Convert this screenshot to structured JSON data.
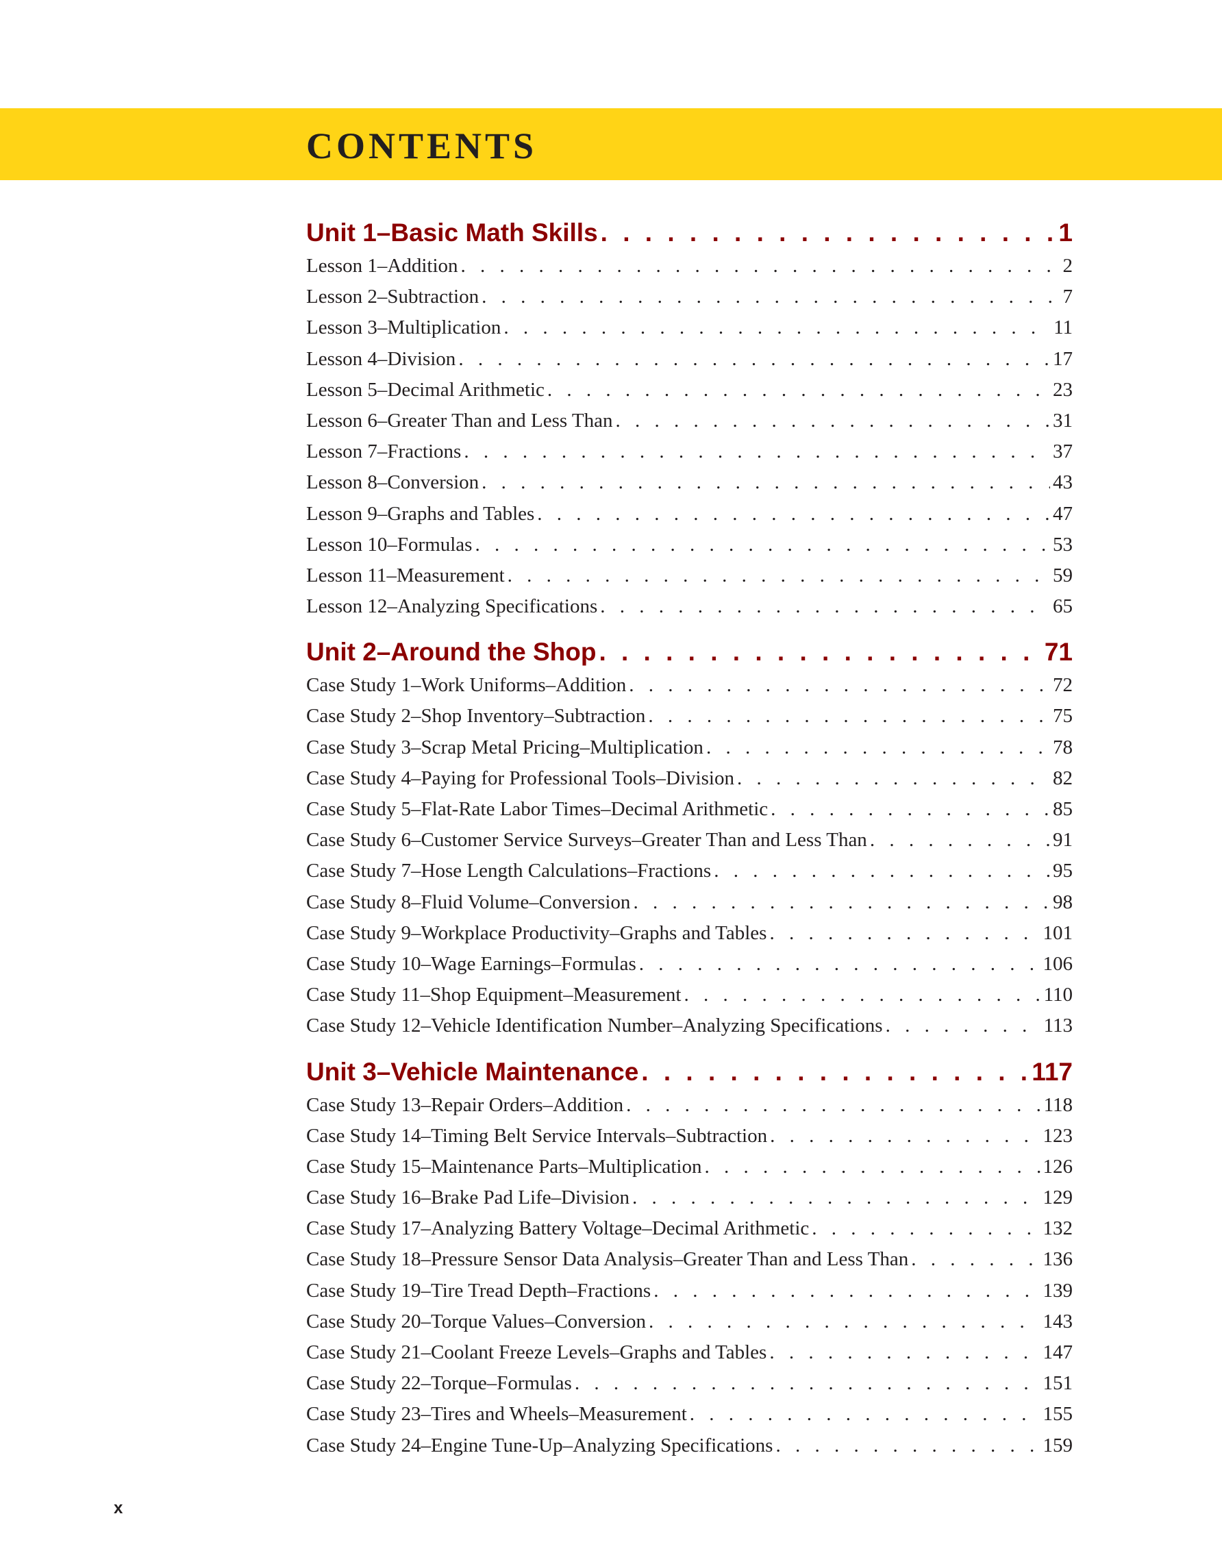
{
  "header": {
    "title": "CONTENTS",
    "banner_color": "#FFD416"
  },
  "colors": {
    "unit_heading": "#8B0000",
    "text": "#231f20"
  },
  "units": [
    {
      "title": "Unit 1–Basic Math Skills",
      "page": "1",
      "entries": [
        {
          "label": "Lesson 1–Addition",
          "page": "2"
        },
        {
          "label": "Lesson 2–Subtraction",
          "page": "7"
        },
        {
          "label": "Lesson 3–Multiplication",
          "page": "11"
        },
        {
          "label": "Lesson 4–Division",
          "page": "17"
        },
        {
          "label": "Lesson 5–Decimal Arithmetic",
          "page": "23"
        },
        {
          "label": "Lesson 6–Greater Than and Less Than",
          "page": "31"
        },
        {
          "label": "Lesson 7–Fractions",
          "page": "37"
        },
        {
          "label": "Lesson 8–Conversion",
          "page": "43"
        },
        {
          "label": "Lesson 9–Graphs and Tables",
          "page": "47"
        },
        {
          "label": "Lesson 10–Formulas",
          "page": "53"
        },
        {
          "label": "Lesson 11–Measurement",
          "page": "59"
        },
        {
          "label": "Lesson 12–Analyzing Specifications",
          "page": "65"
        }
      ]
    },
    {
      "title": "Unit 2–Around the Shop",
      "page": "71",
      "entries": [
        {
          "label": "Case Study 1–Work Uniforms–Addition",
          "page": "72"
        },
        {
          "label": "Case Study 2–Shop Inventory–Subtraction",
          "page": "75"
        },
        {
          "label": "Case Study 3–Scrap Metal Pricing–Multiplication",
          "page": "78"
        },
        {
          "label": "Case Study 4–Paying for Professional Tools–Division",
          "page": "82"
        },
        {
          "label": "Case Study 5–Flat-Rate Labor Times–Decimal Arithmetic",
          "page": "85"
        },
        {
          "label": "Case Study 6–Customer Service Surveys–Greater Than and Less Than",
          "page": "91"
        },
        {
          "label": "Case Study 7–Hose Length Calculations–Fractions",
          "page": "95"
        },
        {
          "label": "Case Study 8–Fluid Volume–Conversion",
          "page": "98"
        },
        {
          "label": "Case Study 9–Workplace Productivity–Graphs and Tables",
          "page": "101"
        },
        {
          "label": "Case Study 10–Wage Earnings–Formulas",
          "page": "106"
        },
        {
          "label": "Case Study 11–Shop Equipment–Measurement",
          "page": "110"
        },
        {
          "label": "Case Study 12–Vehicle Identification Number–Analyzing Specifications",
          "page": "113"
        }
      ]
    },
    {
      "title": "Unit 3–Vehicle Maintenance",
      "page": "117",
      "entries": [
        {
          "label": "Case Study 13–Repair Orders–Addition",
          "page": "118"
        },
        {
          "label": "Case Study 14–Timing Belt Service Intervals–Subtraction",
          "page": "123"
        },
        {
          "label": "Case Study 15–Maintenance Parts–Multiplication",
          "page": "126"
        },
        {
          "label": "Case Study 16–Brake Pad Life–Division",
          "page": "129"
        },
        {
          "label": "Case Study 17–Analyzing Battery Voltage–Decimal Arithmetic",
          "page": "132"
        },
        {
          "label": "Case Study 18–Pressure Sensor Data Analysis–Greater Than and Less Than",
          "page": "136"
        },
        {
          "label": "Case Study 19–Tire Tread Depth–Fractions",
          "page": "139"
        },
        {
          "label": "Case Study 20–Torque Values–Conversion",
          "page": "143"
        },
        {
          "label": "Case Study 21–Coolant Freeze Levels–Graphs and Tables",
          "page": "147"
        },
        {
          "label": "Case Study 22–Torque–Formulas",
          "page": "151"
        },
        {
          "label": "Case Study 23–Tires and Wheels–Measurement",
          "page": "155"
        },
        {
          "label": "Case Study 24–Engine Tune-Up–Analyzing Specifications",
          "page": "159"
        }
      ]
    }
  ],
  "footer": {
    "folio": "x"
  }
}
